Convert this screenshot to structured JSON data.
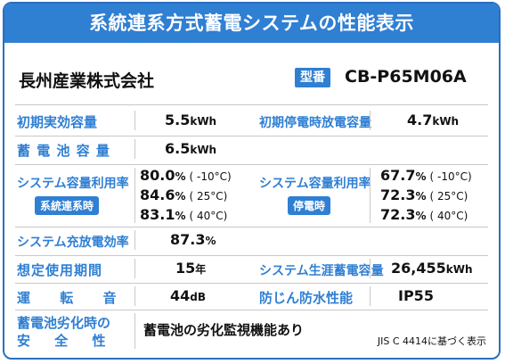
{
  "title": "系統連系方式蓄電システムの性能表示",
  "company": "長州産業株式会社",
  "model": {
    "tag": "型番",
    "value": "CB-P65M06A"
  },
  "rows": {
    "initial_capacity": {
      "label": "初期実効容量",
      "value": "5.5",
      "unit": "kWh"
    },
    "initial_discharge": {
      "label": "初期停電時放電容量",
      "value": "4.7",
      "unit": "kWh"
    },
    "battery_capacity": {
      "label": "蓄 電 池 容 量",
      "value": "6.5",
      "unit": "kWh"
    },
    "util_grid": {
      "label": "システム容量利用率",
      "badge": "系統連系時",
      "items": [
        {
          "value": "80.0",
          "unit": "%",
          "cond": "( -10°C)"
        },
        {
          "value": "84.6",
          "unit": "%",
          "cond": "( 25°C)"
        },
        {
          "value": "83.1",
          "unit": "%",
          "cond": "( 40°C)"
        }
      ]
    },
    "util_outage": {
      "label": "システム容量利用率",
      "badge": "停電時",
      "items": [
        {
          "value": "67.7",
          "unit": "%",
          "cond": "( -10°C)"
        },
        {
          "value": "72.3",
          "unit": "%",
          "cond": "( 25°C)"
        },
        {
          "value": "72.3",
          "unit": "%",
          "cond": "( 40°C)"
        }
      ]
    },
    "efficiency": {
      "label": "システム充放電効率",
      "value": "87.3",
      "unit": "%"
    },
    "lifetime": {
      "label": "想定使用期間",
      "value": "15",
      "unit": "年"
    },
    "lifetime_storage": {
      "label": "システム生涯蓄電容量",
      "value": "26,455",
      "unit": "kWh"
    },
    "noise": {
      "label": "運 転 音",
      "value": "44",
      "unit": "dB"
    },
    "protection": {
      "label": "防じん防水性能",
      "value": "IP55"
    },
    "safety": {
      "label_line1": "蓄電池劣化時の",
      "label_line2": "安 全 性",
      "value": "蓄電池の劣化監視機能あり"
    }
  },
  "footnote": "JIS C 4414に基づく表示",
  "colors": {
    "accent": "#2f7fd3",
    "border": "#2b6fbf"
  }
}
